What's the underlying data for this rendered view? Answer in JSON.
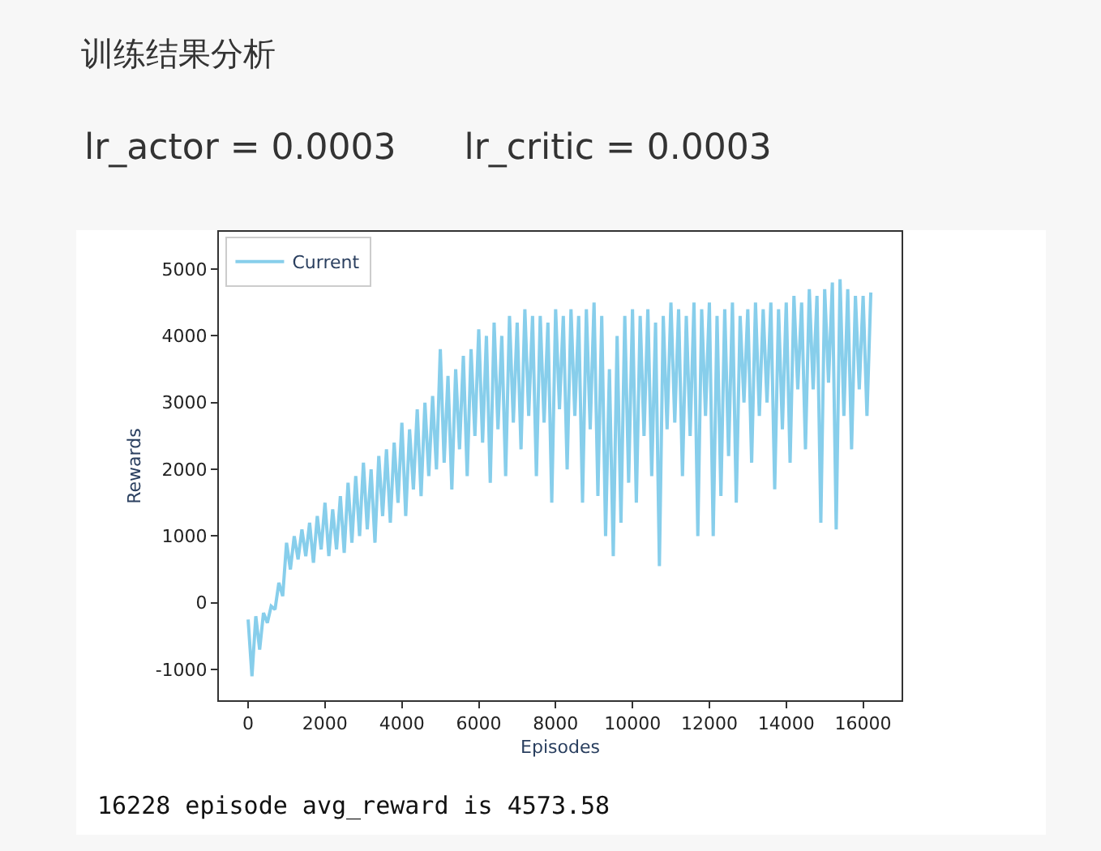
{
  "chart_data": {
    "type": "line",
    "title": "训练结果分析",
    "subtitle": "lr_actor = 0.0003      lr_critic = 0.0003",
    "xlabel": "Episodes",
    "ylabel": "Rewards",
    "annotations": [
      "16228 episode avg_reward is 4573.58"
    ],
    "xlim": [
      -760,
      17000
    ],
    "xticks": [
      0,
      2000,
      4000,
      6000,
      8000,
      10000,
      12000,
      14000,
      16000
    ],
    "ylim": [
      -1460,
      5560
    ],
    "yticks": [
      -1000,
      0,
      1000,
      2000,
      3000,
      4000,
      5000
    ],
    "legend": "top left",
    "marker": "none",
    "line_style": "solid",
    "series": [
      {
        "name": "Current",
        "color": "#87ceeb",
        "x": [
          0,
          100,
          200,
          300,
          400,
          500,
          600,
          700,
          800,
          900,
          1000,
          1100,
          1200,
          1300,
          1400,
          1500,
          1600,
          1700,
          1800,
          1900,
          2000,
          2100,
          2200,
          2300,
          2400,
          2500,
          2600,
          2700,
          2800,
          2900,
          3000,
          3100,
          3200,
          3300,
          3400,
          3500,
          3600,
          3700,
          3800,
          3900,
          4000,
          4100,
          4200,
          4300,
          4400,
          4500,
          4600,
          4700,
          4800,
          4900,
          5000,
          5100,
          5200,
          5300,
          5400,
          5500,
          5600,
          5700,
          5800,
          5900,
          6000,
          6100,
          6200,
          6300,
          6400,
          6500,
          6600,
          6700,
          6800,
          6900,
          7000,
          7100,
          7200,
          7300,
          7400,
          7500,
          7600,
          7700,
          7800,
          7900,
          8000,
          8100,
          8200,
          8300,
          8400,
          8500,
          8600,
          8700,
          8800,
          8900,
          9000,
          9100,
          9200,
          9300,
          9400,
          9500,
          9600,
          9700,
          9800,
          9900,
          10000,
          10100,
          10200,
          10300,
          10400,
          10500,
          10600,
          10700,
          10800,
          10900,
          11000,
          11100,
          11200,
          11300,
          11400,
          11500,
          11600,
          11700,
          11800,
          11900,
          12000,
          12100,
          12200,
          12300,
          12400,
          12500,
          12600,
          12700,
          12800,
          12900,
          13000,
          13100,
          13200,
          13300,
          13400,
          13500,
          13600,
          13700,
          13800,
          13900,
          14000,
          14100,
          14200,
          14300,
          14400,
          14500,
          14600,
          14700,
          14800,
          14900,
          15000,
          15100,
          15200,
          15300,
          15400,
          15500,
          15600,
          15700,
          15800,
          15900,
          16000,
          16100,
          16200
        ],
        "values": [
          -250,
          -1100,
          -200,
          -700,
          -150,
          -300,
          -50,
          -100,
          300,
          100,
          900,
          500,
          1000,
          650,
          1100,
          700,
          1200,
          600,
          1300,
          800,
          1500,
          700,
          1400,
          800,
          1600,
          750,
          1800,
          900,
          1900,
          1000,
          2100,
          1100,
          2000,
          900,
          2200,
          1300,
          2300,
          1200,
          2400,
          1500,
          2700,
          1300,
          2600,
          1700,
          2900,
          1600,
          3000,
          1900,
          3100,
          2000,
          3800,
          2100,
          3400,
          1700,
          3500,
          2300,
          3700,
          1900,
          3800,
          2500,
          4100,
          2400,
          4000,
          1800,
          4200,
          2600,
          4000,
          1900,
          4300,
          2700,
          4200,
          2300,
          4400,
          2800,
          4300,
          1900,
          4300,
          2700,
          4200,
          1500,
          4400,
          2900,
          4300,
          2000,
          4400,
          2800,
          4300,
          1500,
          4400,
          2600,
          4500,
          1600,
          4300,
          1000,
          3500,
          700,
          4000,
          1200,
          4300,
          1800,
          4400,
          1500,
          4300,
          2500,
          4400,
          1900,
          4200,
          550,
          4300,
          2600,
          4500,
          2700,
          4400,
          1900,
          4300,
          2500,
          4500,
          1000,
          4400,
          2800,
          4500,
          1000,
          4300,
          1600,
          4400,
          2200,
          4500,
          1500,
          4300,
          3000,
          4400,
          2100,
          4500,
          2800,
          4400,
          3000,
          4500,
          1700,
          4400,
          2600,
          4500,
          2100,
          4600,
          3200,
          4500,
          2300,
          4700,
          3200,
          4600,
          1200,
          4700,
          3300,
          4800,
          1100,
          4850,
          2800,
          4700,
          2300,
          4600,
          3200,
          4600,
          2800,
          4650
        ]
      }
    ]
  }
}
